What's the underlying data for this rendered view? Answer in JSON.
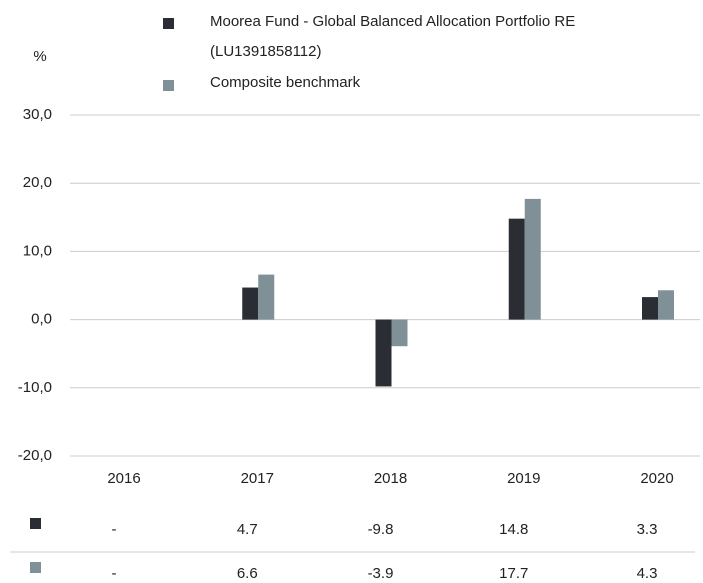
{
  "chart_data": {
    "type": "bar",
    "y_axis_label": "%",
    "categories": [
      "2016",
      "2017",
      "2018",
      "2019",
      "2020"
    ],
    "series": [
      {
        "name": "Moorea Fund - Global Balanced Allocation Portfolio RE (LU1391858112)",
        "color": "#2b2d35",
        "values": [
          null,
          4.7,
          -9.8,
          14.8,
          3.3
        ],
        "value_labels": [
          "-",
          "4.7",
          "-9.8",
          "14.8",
          "3.3"
        ]
      },
      {
        "name": "Composite benchmark",
        "color": "#7f9196",
        "values": [
          null,
          6.6,
          -3.9,
          17.7,
          4.3
        ],
        "value_labels": [
          "-",
          "6.6",
          "-3.9",
          "17.7",
          "4.3"
        ]
      }
    ],
    "ylim": [
      -20,
      30
    ],
    "yticks": [
      {
        "value": -20,
        "label": "-20,0"
      },
      {
        "value": -10,
        "label": "-10,0"
      },
      {
        "value": 0,
        "label": "0,0"
      },
      {
        "value": 10,
        "label": "10,0"
      },
      {
        "value": 20,
        "label": "20,0"
      },
      {
        "value": 30,
        "label": "30,0"
      }
    ],
    "grid": true
  }
}
